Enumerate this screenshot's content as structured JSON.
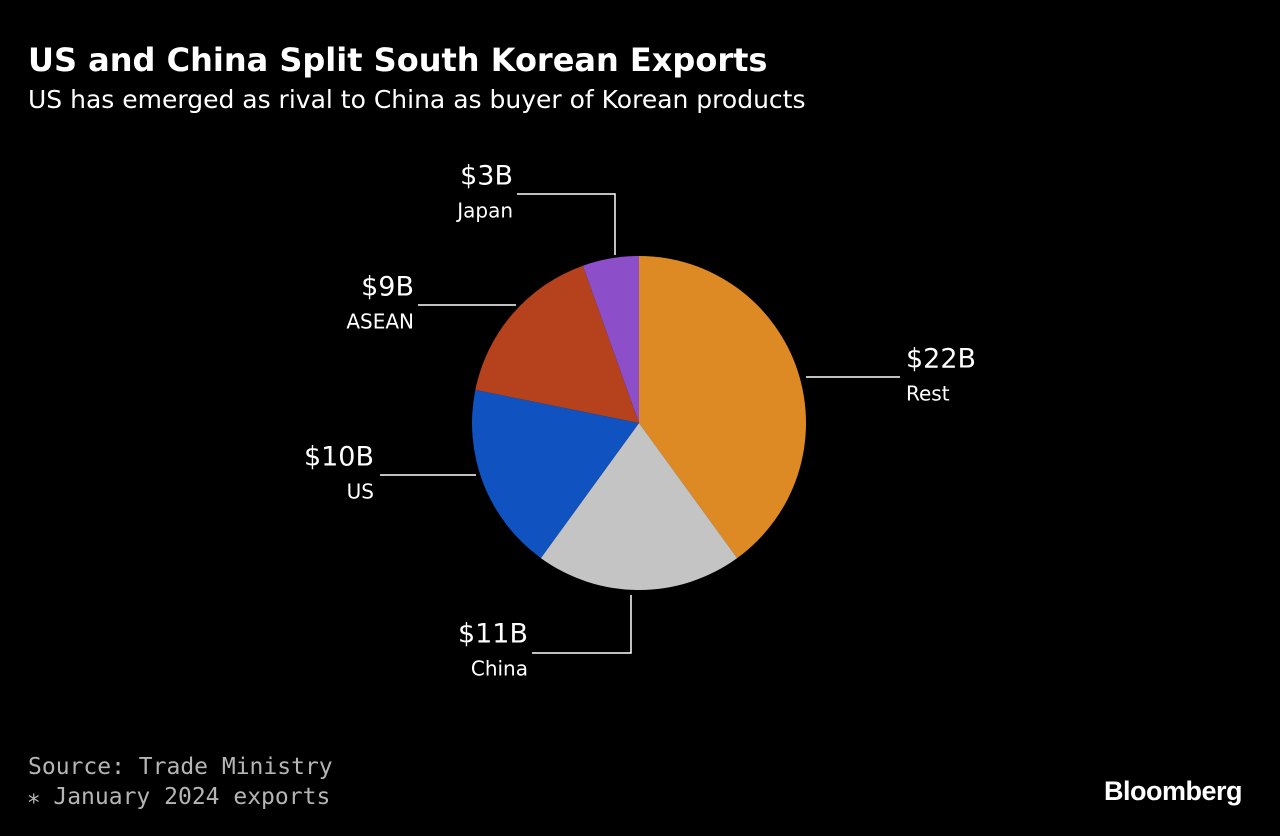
{
  "header": {
    "title": "US and China Split South Korean Exports",
    "subtitle": "US has emerged as rival to China as buyer of Korean products"
  },
  "footer": {
    "source": "Source: Trade Ministry",
    "note": "⁎ January 2024 exports",
    "brand": "Bloomberg"
  },
  "chart_data": {
    "type": "pie",
    "title": "US and China Split South Korean Exports",
    "subtitle": "US has emerged as rival to China as buyer of Korean products",
    "unit": "USD billions",
    "start": "12 o'clock",
    "direction": "clockwise",
    "slices": [
      {
        "key": "rest",
        "label": "Rest",
        "value": 22,
        "value_label": "$22B",
        "color": "#dd8a24"
      },
      {
        "key": "china",
        "label": "China",
        "value": 11,
        "value_label": "$11B",
        "color": "#c4c4c4"
      },
      {
        "key": "us",
        "label": "US",
        "value": 10,
        "value_label": "$10B",
        "color": "#0f52c0"
      },
      {
        "key": "asean",
        "label": "ASEAN",
        "value": 9,
        "value_label": "$9B",
        "color": "#b5421c"
      },
      {
        "key": "japan",
        "label": "Japan",
        "value": 3,
        "value_label": "$3B",
        "color": "#8d4fc9"
      }
    ]
  }
}
